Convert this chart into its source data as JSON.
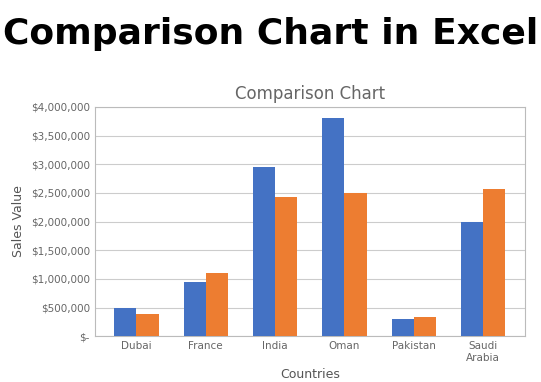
{
  "title_main": "Comparison Chart in Excel",
  "chart_title": "Comparison Chart",
  "xlabel": "Countries",
  "ylabel": "Sales Value",
  "categories": [
    "Dubai",
    "France",
    "India",
    "Oman",
    "Pakistan",
    "Saudi\nArabia"
  ],
  "series1": [
    500000,
    950000,
    2950000,
    3800000,
    300000,
    2000000
  ],
  "series2": [
    380000,
    1100000,
    2420000,
    2500000,
    330000,
    2560000
  ],
  "color1": "#4472C4",
  "color2": "#ED7D31",
  "ylim": [
    0,
    4000000
  ],
  "yticks": [
    0,
    500000,
    1000000,
    1500000,
    2000000,
    2500000,
    3000000,
    3500000,
    4000000
  ],
  "ytick_labels": [
    "$-",
    "$500,000",
    "$1,000,000",
    "$1,500,000",
    "$2,000,000",
    "$2,500,000",
    "$3,000,000",
    "$3,500,000",
    "$4,000,000"
  ],
  "background_color": "#ffffff",
  "chart_bg": "#ffffff",
  "grid_color": "#cccccc",
  "border_color": "#bbbbbb",
  "title_fontsize": 26,
  "chart_title_fontsize": 12,
  "axis_label_fontsize": 9,
  "tick_fontsize": 7.5,
  "title_color": "#000000",
  "chart_title_color": "#666666",
  "tick_color": "#666666",
  "label_color": "#555555"
}
